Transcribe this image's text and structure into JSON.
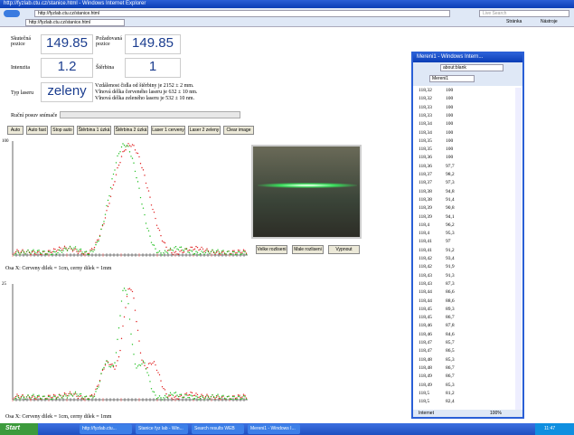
{
  "browser": {
    "title": "http://fyzlab.ctu.cz/stanice.html - Windows Internet Explorer",
    "address": "http://fyzlab.ctu.cz/stanice.html",
    "tab": "http://fyzlab.ctu.cz/stanice.html",
    "search": "Live Search",
    "menu": "Stránka",
    "tools": "Nástroje"
  },
  "panel": {
    "real_label": "Skutečná pozice",
    "real_value": "149.85",
    "req_label": "Požadovaná pozice",
    "req_value": "149.85",
    "int_label": "Intenzita",
    "int_value": "1.2",
    "slit_label": "Štěrbina",
    "slit_value": "1",
    "laser_label": "Typ laseru",
    "laser_value": "zeleny",
    "info": [
      "Vzdálenost čidla od štěrbiny je 2152 ± 2 mm.",
      "Vlnová délka červeného laseru je 632 ± 10 nm.",
      "Vlnová délka zeleného laseru je 532 ± 10 nm."
    ],
    "slider_label": "Ruční posuv snímače",
    "buttons": [
      "Auto",
      "Auto fast",
      "Stop auto",
      "Štěrbina 1 úzká",
      "Štěrbina 2 úzká",
      "Laser 1 cerveny",
      "Laser 2 zeleny",
      "Clear image"
    ],
    "plot1_ytick": "100",
    "plot2_ytick": "25",
    "caption1": "Osa X: Cerveny dilek = 1cm, cerny dilek = 1mm",
    "caption2": "Osa X: Cerveny dilek = 1cm, cerny dilek = 1mm",
    "camera_buttons": [
      "Velke rozliseni",
      "Male rozliseni",
      "Vypnout"
    ]
  },
  "popup": {
    "title": "Mereni1 - Windows Intern...",
    "address": "about:blank",
    "tab": "Mereni1",
    "status": "Internet",
    "zoom": "100%",
    "rows": [
      [
        "118,32",
        "100"
      ],
      [
        "118,32",
        "100"
      ],
      [
        "118,33",
        "100"
      ],
      [
        "118,33",
        "100"
      ],
      [
        "118,34",
        "100"
      ],
      [
        "118,34",
        "100"
      ],
      [
        "118,35",
        "100"
      ],
      [
        "118,35",
        "100"
      ],
      [
        "118,36",
        "100"
      ],
      [
        "118,36",
        "97,7"
      ],
      [
        "118,37",
        "98,2"
      ],
      [
        "118,37",
        "97,3"
      ],
      [
        "118,38",
        "94,8"
      ],
      [
        "118,38",
        "91,4"
      ],
      [
        "118,39",
        "90,8"
      ],
      [
        "118,39",
        "94,1"
      ],
      [
        "118,4",
        "96,2"
      ],
      [
        "118,4",
        "95,3"
      ],
      [
        "118,41",
        "97"
      ],
      [
        "118,41",
        "91,2"
      ],
      [
        "118,42",
        "93,4"
      ],
      [
        "118,42",
        "91,9"
      ],
      [
        "118,43",
        "91,3"
      ],
      [
        "118,43",
        "87,3"
      ],
      [
        "118,44",
        "86,6"
      ],
      [
        "118,44",
        "88,6"
      ],
      [
        "118,45",
        "89,3"
      ],
      [
        "118,45",
        "86,7"
      ],
      [
        "118,46",
        "87,8"
      ],
      [
        "118,46",
        "84,6"
      ],
      [
        "118,47",
        "85,7"
      ],
      [
        "118,47",
        "86,5"
      ],
      [
        "118,48",
        "85,3"
      ],
      [
        "118,48",
        "86,7"
      ],
      [
        "118,49",
        "86,7"
      ],
      [
        "118,49",
        "85,3"
      ],
      [
        "118,5",
        "81,2"
      ],
      [
        "118,5",
        "82,4"
      ]
    ]
  },
  "taskbar": {
    "start": "Start",
    "items": [
      "http://fyzlab.ctu...",
      "Stanice fyz lab - Win...",
      "Search results WEB",
      "Mereni1 - Windows I..."
    ],
    "clock": "11:47"
  }
}
